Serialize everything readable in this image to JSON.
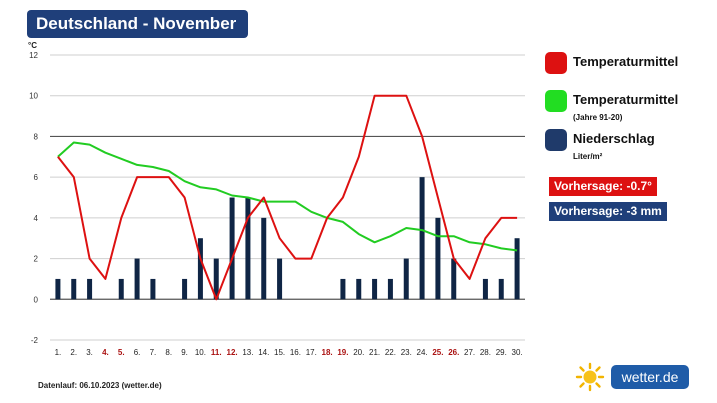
{
  "header": {
    "title": "Deutschland - November"
  },
  "legend": {
    "items": [
      {
        "label": "Temperaturmittel",
        "sub": "",
        "color": "#dd1111"
      },
      {
        "label": "Temperaturmittel",
        "sub": "(Jahre 91-20)",
        "color": "#22dd22"
      },
      {
        "label": "Niederschlag",
        "sub": "Liter/m²",
        "color": "#1f3a6a"
      }
    ]
  },
  "forecast": {
    "temp": {
      "text": "Vorhersage: -0.7°",
      "color": "#dd1111"
    },
    "rain": {
      "text": "Vorhersage: -3 mm",
      "color": "#1f3f7a"
    }
  },
  "footer": {
    "text": "Datenlauf: 06.10.2023 (wetter.de)"
  },
  "brand": {
    "name": "wetter.de"
  },
  "chart_data": {
    "type": "line",
    "ylabel": "°C",
    "ylim": [
      -2,
      12
    ],
    "yticks": [
      -2,
      0,
      2,
      4,
      6,
      8,
      10,
      12
    ],
    "grid": "horizontal",
    "categories": [
      "1.",
      "2.",
      "3.",
      "4.",
      "5.",
      "6.",
      "7.",
      "8.",
      "9.",
      "10.",
      "11.",
      "12.",
      "13.",
      "14.",
      "15.",
      "16.",
      "17.",
      "18.",
      "19.",
      "20.",
      "21.",
      "22.",
      "23.",
      "24.",
      "25.",
      "26.",
      "27.",
      "28.",
      "29.",
      "30."
    ],
    "weekend_days": [
      "4.",
      "5.",
      "11.",
      "12.",
      "18.",
      "19.",
      "25.",
      "26."
    ],
    "weekend_color": "#aa1111",
    "series": [
      {
        "name": "Niederschlag",
        "type": "bar",
        "color": "#0f2545",
        "values": [
          1,
          1,
          1,
          0,
          1,
          2,
          1,
          0,
          1,
          3,
          2,
          5,
          5,
          4,
          2,
          0,
          0,
          0,
          1,
          1,
          1,
          1,
          2,
          6,
          4,
          2,
          0,
          1,
          1,
          3
        ]
      },
      {
        "name": "Temperaturmittel (Jahre 91-20)",
        "type": "line",
        "color": "#22cc22",
        "values": [
          7.0,
          7.7,
          7.6,
          7.2,
          6.9,
          6.6,
          6.5,
          6.3,
          5.8,
          5.5,
          5.4,
          5.1,
          5.0,
          4.8,
          4.8,
          4.8,
          4.3,
          4.0,
          3.8,
          3.2,
          2.8,
          3.1,
          3.5,
          3.4,
          3.1,
          3.1,
          2.8,
          2.7,
          2.5,
          2.4
        ]
      },
      {
        "name": "Temperaturmittel",
        "type": "line",
        "color": "#dd1111",
        "values": [
          7.0,
          6.0,
          2.0,
          1.0,
          4.0,
          6.0,
          6.0,
          6.0,
          5.0,
          2.0,
          0.0,
          2.0,
          4.0,
          5.0,
          3.0,
          2.0,
          2.0,
          4.0,
          5.0,
          7.0,
          10.0,
          10.0,
          10.0,
          8.0,
          5.0,
          2.0,
          1.0,
          3.0,
          4.0,
          4.0
        ]
      }
    ]
  }
}
